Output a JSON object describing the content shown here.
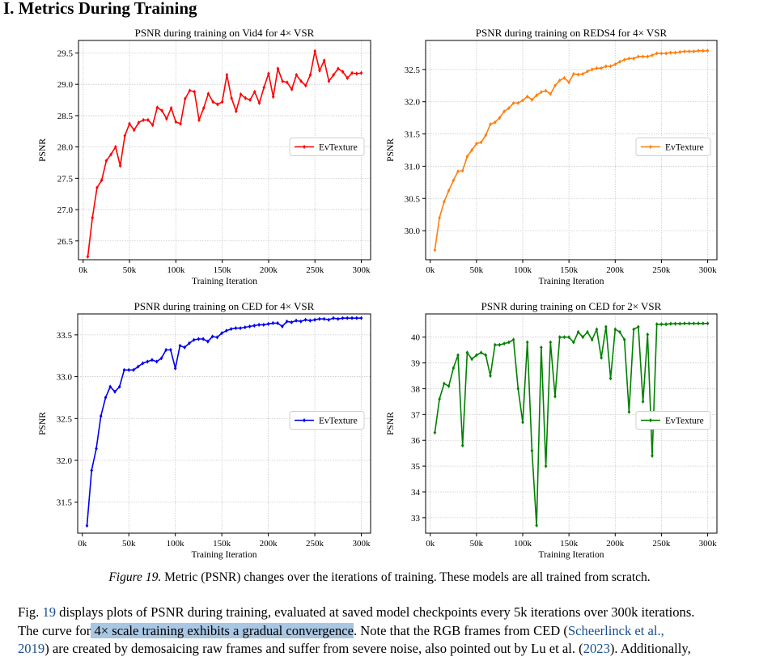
{
  "section": {
    "title": "I. Metrics During Training"
  },
  "charts": [
    {
      "id": "vid4",
      "title": "PSNR during training on Vid4 for 4× VSR",
      "xlabel": "Training Iteration",
      "ylabel": "PSNR",
      "legend": "EvTexture",
      "color": "#ff0000",
      "marker": "diamond",
      "legend_pos": "center-right",
      "xticks": [
        "0k",
        "50k",
        "100k",
        "150k",
        "200k",
        "250k",
        "300k"
      ],
      "yticks": [
        26.5,
        27.0,
        27.5,
        28.0,
        28.5,
        29.0,
        29.5
      ],
      "ytick_labels": [
        "26.5",
        "27.0",
        "27.5",
        "28.0",
        "28.5",
        "29.0",
        "29.5"
      ]
    },
    {
      "id": "reds4",
      "title": "PSNR during training on REDS4 for 4× VSR",
      "xlabel": "Training Iteration",
      "ylabel": "PSNR",
      "legend": "EvTexture",
      "color": "#ff7f0e",
      "marker": "diamond",
      "legend_pos": "center-right",
      "xticks": [
        "0k",
        "50k",
        "100k",
        "150k",
        "200k",
        "250k",
        "300k"
      ],
      "yticks": [
        30.0,
        30.5,
        31.0,
        31.5,
        32.0,
        32.5
      ],
      "ytick_labels": [
        "30.0",
        "30.5",
        "31.0",
        "31.5",
        "32.0",
        "32.5"
      ]
    },
    {
      "id": "ced4",
      "title": "PSNR during training on CED for 4× VSR",
      "xlabel": "Training Iteration",
      "ylabel": "PSNR",
      "legend": "EvTexture",
      "color": "#0000ee",
      "marker": "diamond",
      "legend_pos": "center-right",
      "xticks": [
        "0k",
        "50k",
        "100k",
        "150k",
        "200k",
        "250k",
        "300k"
      ],
      "yticks": [
        31.5,
        32.0,
        32.5,
        33.0,
        33.5
      ],
      "ytick_labels": [
        "31.5",
        "32.0",
        "32.5",
        "33.0",
        "33.5"
      ]
    },
    {
      "id": "ced2",
      "title": "PSNR during training on CED for 2× VSR",
      "xlabel": "Training Iteration",
      "ylabel": "PSNR",
      "legend": "EvTexture",
      "color": "#008000",
      "marker": "diamond",
      "legend_pos": "center-right",
      "xticks": [
        "0k",
        "50k",
        "100k",
        "150k",
        "200k",
        "250k",
        "300k"
      ],
      "yticks": [
        33,
        34,
        35,
        36,
        37,
        38,
        39,
        40
      ],
      "ytick_labels": [
        "33",
        "34",
        "35",
        "36",
        "37",
        "38",
        "39",
        "40"
      ]
    }
  ],
  "chart_data": [
    {
      "type": "line",
      "title": "PSNR during training on Vid4 for 4× VSR",
      "xlabel": "Training Iteration",
      "ylabel": "PSNR",
      "xlim": [
        -5,
        310
      ],
      "ylim": [
        26.2,
        29.7
      ],
      "grid": true,
      "legend": "center-right",
      "series": [
        {
          "name": "EvTexture",
          "x": [
            5,
            10,
            15,
            20,
            25,
            30,
            35,
            40,
            45,
            50,
            55,
            60,
            65,
            70,
            75,
            80,
            85,
            90,
            95,
            100,
            105,
            110,
            115,
            120,
            125,
            130,
            135,
            140,
            145,
            150,
            155,
            160,
            165,
            170,
            175,
            180,
            185,
            190,
            195,
            200,
            205,
            210,
            215,
            220,
            225,
            230,
            235,
            240,
            245,
            250,
            255,
            260,
            265,
            270,
            275,
            280,
            285,
            290,
            295,
            300
          ],
          "values": [
            26.25,
            26.87,
            27.35,
            27.47,
            27.78,
            27.88,
            28.0,
            27.7,
            28.18,
            28.37,
            28.27,
            28.39,
            28.43,
            28.43,
            28.35,
            28.63,
            28.58,
            28.45,
            28.62,
            28.4,
            28.37,
            28.77,
            28.9,
            28.88,
            28.43,
            28.62,
            28.85,
            28.72,
            28.68,
            28.72,
            29.15,
            28.78,
            28.57,
            28.84,
            28.78,
            28.75,
            28.88,
            28.7,
            28.95,
            29.17,
            28.8,
            29.25,
            29.05,
            29.03,
            28.92,
            29.15,
            29.05,
            28.98,
            29.15,
            29.53,
            29.22,
            29.38,
            29.05,
            29.15,
            29.25,
            29.2,
            29.1,
            29.18,
            29.17,
            29.18
          ]
        }
      ]
    },
    {
      "type": "line",
      "title": "PSNR during training on REDS4 for 4× VSR",
      "xlabel": "Training Iteration",
      "ylabel": "PSNR",
      "xlim": [
        -5,
        310
      ],
      "ylim": [
        29.55,
        32.95
      ],
      "grid": true,
      "legend": "center-right",
      "series": [
        {
          "name": "EvTexture",
          "x": [
            5,
            10,
            15,
            20,
            25,
            30,
            35,
            40,
            45,
            50,
            55,
            60,
            65,
            70,
            75,
            80,
            85,
            90,
            95,
            100,
            105,
            110,
            115,
            120,
            125,
            130,
            135,
            140,
            145,
            150,
            155,
            160,
            165,
            170,
            175,
            180,
            185,
            190,
            195,
            200,
            205,
            210,
            215,
            220,
            225,
            230,
            235,
            240,
            245,
            250,
            255,
            260,
            265,
            270,
            275,
            280,
            285,
            290,
            295,
            300
          ],
          "values": [
            29.7,
            30.2,
            30.45,
            30.62,
            30.78,
            30.92,
            30.93,
            31.15,
            31.25,
            31.35,
            31.37,
            31.48,
            31.65,
            31.68,
            31.75,
            31.85,
            31.9,
            31.98,
            31.98,
            32.02,
            32.08,
            32.03,
            32.1,
            32.15,
            32.17,
            32.12,
            32.25,
            32.33,
            32.37,
            32.3,
            32.43,
            32.42,
            32.43,
            32.47,
            32.5,
            32.52,
            32.52,
            32.55,
            32.55,
            32.58,
            32.62,
            32.65,
            32.67,
            32.67,
            32.7,
            32.7,
            32.7,
            32.72,
            32.75,
            32.75,
            32.75,
            32.76,
            32.76,
            32.77,
            32.78,
            32.78,
            32.78,
            32.79,
            32.79,
            32.79
          ]
        }
      ]
    },
    {
      "type": "line",
      "title": "PSNR during training on CED for 4× VSR",
      "xlabel": "Training Iteration",
      "ylabel": "PSNR",
      "xlim": [
        -5,
        310
      ],
      "ylim": [
        31.13,
        33.75
      ],
      "grid": true,
      "legend": "center-right",
      "series": [
        {
          "name": "EvTexture",
          "x": [
            5,
            10,
            15,
            20,
            25,
            30,
            35,
            40,
            45,
            50,
            55,
            60,
            65,
            70,
            75,
            80,
            85,
            90,
            95,
            100,
            105,
            110,
            115,
            120,
            125,
            130,
            135,
            140,
            145,
            150,
            155,
            160,
            165,
            170,
            175,
            180,
            185,
            190,
            195,
            200,
            205,
            210,
            215,
            220,
            225,
            230,
            235,
            240,
            245,
            250,
            255,
            260,
            265,
            270,
            275,
            280,
            285,
            290,
            295,
            300
          ],
          "values": [
            31.22,
            31.88,
            32.14,
            32.53,
            32.75,
            32.88,
            32.82,
            32.88,
            33.08,
            33.08,
            33.08,
            33.12,
            33.16,
            33.18,
            33.2,
            33.18,
            33.22,
            33.32,
            33.32,
            33.1,
            33.37,
            33.35,
            33.4,
            33.44,
            33.45,
            33.45,
            33.42,
            33.48,
            33.47,
            33.52,
            33.55,
            33.57,
            33.58,
            33.58,
            33.59,
            33.6,
            33.61,
            33.62,
            33.62,
            33.63,
            33.64,
            33.64,
            33.6,
            33.66,
            33.65,
            33.67,
            33.66,
            33.68,
            33.67,
            33.68,
            33.69,
            33.69,
            33.68,
            33.7,
            33.69,
            33.7,
            33.7,
            33.7,
            33.7,
            33.7
          ]
        }
      ]
    },
    {
      "type": "line",
      "title": "PSNR during training on CED for 2× VSR",
      "xlabel": "Training Iteration",
      "ylabel": "PSNR",
      "xlim": [
        -5,
        310
      ],
      "ylim": [
        32.4,
        40.9
      ],
      "grid": true,
      "legend": "center-right",
      "series": [
        {
          "name": "EvTexture",
          "x": [
            5,
            10,
            15,
            20,
            25,
            30,
            35,
            40,
            45,
            50,
            55,
            60,
            65,
            70,
            75,
            80,
            85,
            90,
            95,
            100,
            105,
            110,
            115,
            120,
            125,
            130,
            135,
            140,
            145,
            150,
            155,
            160,
            165,
            170,
            175,
            180,
            185,
            190,
            195,
            200,
            205,
            210,
            215,
            220,
            225,
            230,
            235,
            240,
            245,
            250,
            255,
            260,
            265,
            270,
            275,
            280,
            285,
            290,
            295,
            300
          ],
          "values": [
            36.3,
            37.6,
            38.2,
            38.1,
            38.8,
            39.3,
            35.8,
            39.4,
            39.15,
            39.3,
            39.4,
            39.3,
            38.5,
            39.7,
            39.7,
            39.75,
            39.8,
            39.9,
            38.0,
            36.7,
            39.8,
            35.6,
            32.7,
            39.6,
            35.0,
            39.8,
            37.7,
            40.0,
            40.0,
            40.0,
            39.8,
            40.2,
            40.0,
            40.2,
            39.9,
            40.3,
            39.2,
            40.4,
            38.4,
            40.3,
            40.2,
            39.9,
            37.1,
            40.3,
            40.4,
            37.5,
            40.1,
            35.4,
            40.5,
            40.5,
            40.5,
            40.52,
            40.52,
            40.52,
            40.53,
            40.53,
            40.53,
            40.53,
            40.53,
            40.53
          ]
        }
      ]
    }
  ],
  "caption": {
    "figure_label": "Figure 19.",
    "text": " Metric (PSNR) changes over the iterations of training. These models are all trained from scratch."
  },
  "body": {
    "l1_a": "Fig. ",
    "l1_ref": "19",
    "l1_b": " displays plots of PSNR during training, evaluated at saved model checkpoints every 5k iterations over 300k iterations.",
    "l2_a": "The curve for",
    "l2_hl": " 4× scale training exhibits a gradual convergence",
    "l2_b": ". Note that the RGB frames from CED (",
    "l2_ref": "Scheerlinck et al.,",
    "l3_ref": "2019",
    "l3_a": ") are created by demosaicing raw frames and suffer from severe noise, also pointed out by Lu et al. (",
    "l3_ref2": "2023",
    "l3_b": "). Additionally,"
  }
}
